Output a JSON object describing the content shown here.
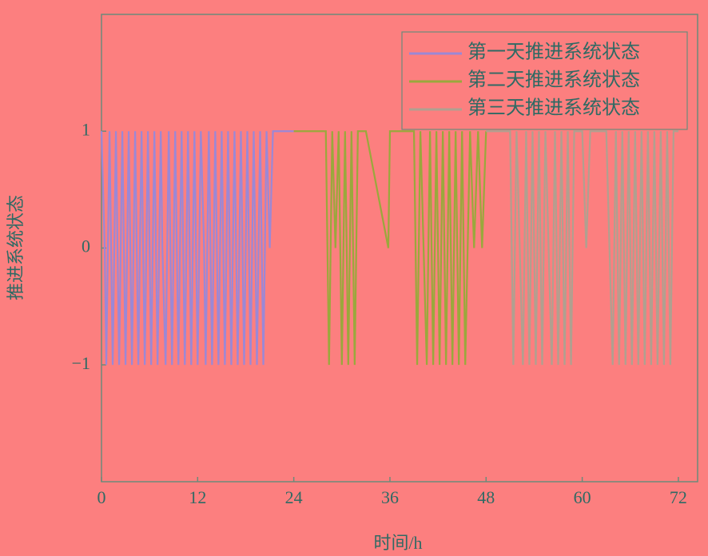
{
  "chart_data": {
    "type": "line",
    "xlabel": "时间/h",
    "ylabel": "推进系统状态",
    "xlim": [
      0,
      74.4
    ],
    "xticks": [
      0,
      12,
      24,
      36,
      48,
      60,
      72
    ],
    "ylim": [
      -2,
      2
    ],
    "yticks": [
      {
        "value": -1,
        "label": "−1"
      },
      0,
      1
    ],
    "grid": false,
    "legend": "upper right",
    "series": [
      {
        "name": "第一天推进系统状态",
        "color": "#9b88d6",
        "x": [
          0,
          0.4,
          0.6,
          1,
          1.4,
          1.8,
          2.2,
          2.6,
          3,
          3.4,
          3.8,
          4.2,
          4.6,
          5,
          5.4,
          5.8,
          6.2,
          6.6,
          7,
          7.4,
          7.6,
          8,
          8.4,
          8.8,
          9.2,
          9.6,
          10,
          10.4,
          10.8,
          11.2,
          11.6,
          12,
          12.4,
          12.8,
          13,
          13.4,
          13.8,
          14.2,
          14.6,
          15,
          15.4,
          15.8,
          16.2,
          16.6,
          17,
          17.4,
          17.8,
          18.2,
          18.6,
          19,
          19.4,
          19.8,
          20.2,
          20.6,
          21,
          21.4,
          22,
          24
        ],
        "values": [
          1,
          0,
          -1,
          1,
          -1,
          1,
          -1,
          1,
          -1,
          1,
          -1,
          1,
          -1,
          1,
          -1,
          1,
          -1,
          1,
          -1,
          1,
          0,
          -1,
          1,
          -1,
          1,
          -1,
          1,
          -1,
          1,
          -1,
          1,
          -1,
          1,
          0,
          -1,
          1,
          -1,
          1,
          -1,
          1,
          -1,
          1,
          -1,
          1,
          -1,
          1,
          -1,
          1,
          -1,
          1,
          -1,
          1,
          -1,
          1,
          0,
          1,
          1,
          1
        ]
      },
      {
        "name": "第二天推进系统状态",
        "color": "#9aa83c",
        "x": [
          24,
          28,
          28.4,
          28.8,
          29.2,
          29.6,
          30,
          30.4,
          30.8,
          31.2,
          31.6,
          32,
          33,
          35.8,
          36,
          39,
          39.4,
          39.8,
          40.2,
          40.6,
          41,
          41.4,
          41.8,
          42.2,
          42.6,
          43,
          43.4,
          43.8,
          44.2,
          44.6,
          45,
          45.4,
          46,
          46.5,
          47,
          47.5,
          48
        ],
        "values": [
          1,
          1,
          -1,
          1,
          0,
          1,
          -1,
          1,
          -1,
          1,
          -1,
          1,
          1,
          0,
          1,
          1,
          -1,
          1,
          0,
          -1,
          1,
          -1,
          1,
          -1,
          1,
          -1,
          1,
          -1,
          1,
          -1,
          1,
          -1,
          1,
          0,
          1,
          0,
          1
        ]
      },
      {
        "name": "第三天推进系统状态",
        "color": "#b0a090",
        "x": [
          48,
          51,
          51.4,
          51.8,
          52.2,
          52.6,
          53,
          53.4,
          53.8,
          54.2,
          54.6,
          55,
          55.4,
          55.8,
          56.2,
          56.6,
          57,
          57.4,
          57.8,
          58.2,
          58.6,
          59,
          60,
          60.5,
          61,
          63,
          63.4,
          63.8,
          64.2,
          64.6,
          65,
          65.4,
          65.8,
          66.2,
          66.6,
          67,
          67.4,
          67.8,
          68.2,
          68.6,
          69,
          69.4,
          69.8,
          70.2,
          70.6,
          71,
          71.4,
          72
        ],
        "values": [
          1,
          1,
          -1,
          1,
          0,
          -1,
          1,
          -1,
          1,
          -1,
          1,
          -1,
          1,
          0,
          -1,
          1,
          -1,
          1,
          -1,
          1,
          -1,
          1,
          1,
          0,
          1,
          1,
          0,
          -1,
          1,
          -1,
          1,
          -1,
          1,
          -1,
          1,
          -1,
          1,
          -1,
          1,
          -1,
          1,
          -1,
          1,
          -1,
          1,
          -1,
          1,
          1
        ]
      }
    ]
  }
}
